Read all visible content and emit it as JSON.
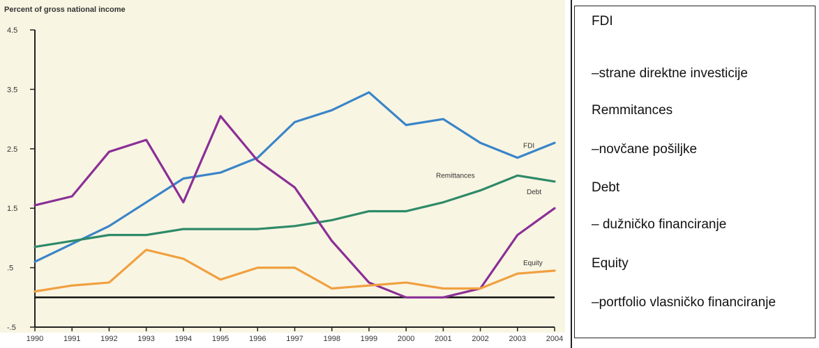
{
  "chart_data": {
    "type": "line",
    "ylabel": "Percent of gross national income",
    "x": [
      "1990",
      "1991",
      "1992",
      "1993",
      "1994",
      "1995",
      "1996",
      "1997",
      "1998",
      "1999",
      "2000",
      "2001",
      "2002",
      "2003",
      "2004"
    ],
    "yticks": [
      "-.5",
      ".5",
      "1.5",
      "2.5",
      "3.5",
      "4.5"
    ],
    "ylim": [
      -0.5,
      4.5
    ],
    "series": [
      {
        "name": "FDI",
        "color": "#3a85c8",
        "values": [
          0.6,
          0.9,
          1.2,
          1.6,
          2.0,
          2.1,
          2.35,
          2.95,
          3.15,
          3.45,
          2.9,
          3.0,
          2.6,
          2.35,
          2.6
        ]
      },
      {
        "name": "Remittances",
        "color": "#2e8a68",
        "values": [
          0.85,
          0.95,
          1.05,
          1.05,
          1.15,
          1.15,
          1.15,
          1.2,
          1.3,
          1.45,
          1.45,
          1.6,
          1.8,
          2.05,
          1.95
        ]
      },
      {
        "name": "Debt",
        "color": "#8a2f96",
        "values": [
          1.55,
          1.7,
          2.45,
          2.65,
          1.6,
          3.05,
          2.3,
          1.85,
          0.95,
          0.25,
          0.0,
          0.0,
          0.15,
          1.05,
          1.5
        ]
      },
      {
        "name": "Equity",
        "color": "#f0a040",
        "values": [
          0.1,
          0.2,
          0.25,
          0.8,
          0.65,
          0.3,
          0.5,
          0.5,
          0.15,
          0.2,
          0.25,
          0.15,
          0.15,
          0.4,
          0.45
        ]
      }
    ],
    "zero_line": true,
    "grid": false
  },
  "legend": {
    "lines": [
      "FDI",
      "–strane direktne investicije",
      "Remmitances",
      " –novčane pošiljke",
      "Debt",
      "– dužničko financiranje",
      "Equity",
      " –portfolio vlasničko financiranje"
    ]
  }
}
